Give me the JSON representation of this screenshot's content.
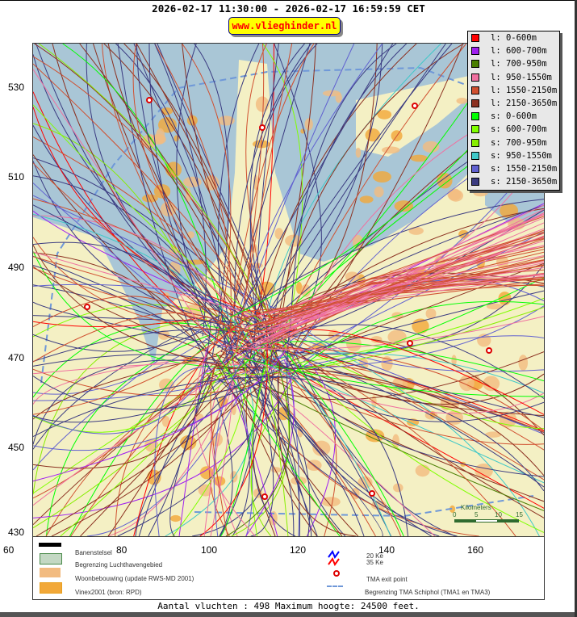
{
  "header": {
    "title": "2026-02-17 11:30:00 - 2026-02-17 16:59:59 CET",
    "logo_text": "www.vlieghinder.nl"
  },
  "axes": {
    "x_ticks": [
      "60",
      "80",
      "100",
      "120",
      "140",
      "160"
    ],
    "y_ticks": [
      "530",
      "510",
      "490",
      "470",
      "450",
      "430"
    ]
  },
  "legend": {
    "items": [
      {
        "label": "l: 0-600m",
        "color": "#ff0000"
      },
      {
        "label": "l: 600-700m",
        "color": "#a020f0"
      },
      {
        "label": "l: 700-950m",
        "color": "#4a7f00"
      },
      {
        "label": "l: 950-1550m",
        "color": "#f070a0"
      },
      {
        "label": "l: 1550-2150m",
        "color": "#d05030"
      },
      {
        "label": "l: 2150-3650m",
        "color": "#8b3020"
      },
      {
        "label": "s: 0-600m",
        "color": "#00ff00"
      },
      {
        "label": "s: 600-700m",
        "color": "#80ff00"
      },
      {
        "label": "s: 700-950m",
        "color": "#88ee00"
      },
      {
        "label": "s: 950-1550m",
        "color": "#40c8c8"
      },
      {
        "label": "s: 1550-2150m",
        "color": "#6060d0"
      },
      {
        "label": "s: 2150-3650m",
        "color": "#3a3a80"
      }
    ]
  },
  "scale": {
    "title": "Kilometers",
    "ticks": [
      "0",
      "5",
      "10",
      "15"
    ]
  },
  "map_legend": {
    "runways": "Banenstelsel",
    "airport_boundary": "Begrenzing Luchthavengebied",
    "housing": "Woonbebouwing (update RWS-MD 2001)",
    "vinex": "Vinex2001 (bron: RPD)",
    "ke20": "20 Ke",
    "ke35": "35 Ke",
    "tma_exit": "TMA exit point",
    "tma_boundary": "Begrenzing TMA Schiphol  (TMA1 en TMA3)"
  },
  "footer": {
    "text": "Aantal vluchten : 498 Maximum hoogte: 24500 feet."
  }
}
